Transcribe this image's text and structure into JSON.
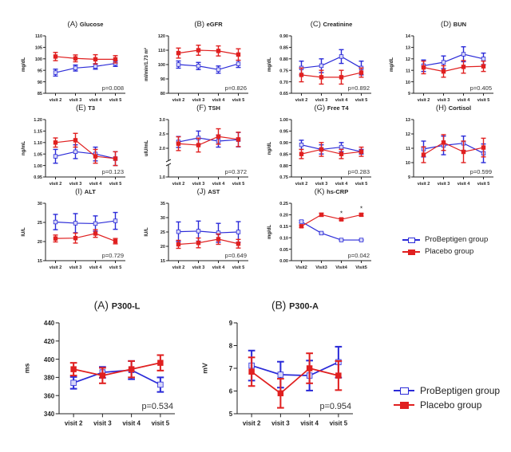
{
  "colors": {
    "probeptigen": "#2b2bd8",
    "placebo": "#e02020",
    "axis": "#222222"
  },
  "legend": {
    "probeptigen_label": "ProBeptigen group",
    "placebo_label": "Placebo group"
  },
  "chart_data": [
    {
      "type": "line",
      "panel": "(A)",
      "title": "Glucose",
      "ylabel": "mg/dL",
      "categories": [
        "visit 2",
        "visit 3",
        "visit 4",
        "visit 5"
      ],
      "ylim": [
        85,
        110
      ],
      "yticks": [
        85,
        90,
        95,
        100,
        105,
        110
      ],
      "tick_decimals": 0,
      "pvalue": "p=0.008",
      "series": [
        {
          "name": "ProBeptigen group",
          "values": [
            94,
            96,
            96.7,
            98
          ],
          "err": [
            1.5,
            1.3,
            1.2,
            1.3
          ]
        },
        {
          "name": "Placebo group",
          "values": [
            101,
            100.2,
            99.8,
            99.8
          ],
          "err": [
            1.8,
            1.5,
            2,
            1.6
          ]
        }
      ]
    },
    {
      "type": "line",
      "panel": "(B)",
      "title": "eGFR",
      "ylabel": "ml/min/1.73 m²",
      "categories": [
        "visit 2",
        "visit 3",
        "visit 4",
        "visit 5"
      ],
      "ylim": [
        80,
        120
      ],
      "yticks": [
        80,
        90,
        100,
        110,
        120
      ],
      "tick_decimals": 0,
      "pvalue": "p=0.826",
      "series": [
        {
          "name": "ProBeptigen group",
          "values": [
            100,
            99,
            96.5,
            100.5
          ],
          "err": [
            2.5,
            2.5,
            2.5,
            2.5
          ]
        },
        {
          "name": "Placebo group",
          "values": [
            108,
            110,
            109.5,
            107
          ],
          "err": [
            3.5,
            3.5,
            3.5,
            4
          ]
        }
      ]
    },
    {
      "type": "line",
      "panel": "(C)",
      "title": "Creatinine",
      "ylabel": "mg/dL",
      "categories": [
        "visit 2",
        "visit 3",
        "visit 4",
        "visit 5"
      ],
      "ylim": [
        0.65,
        0.9
      ],
      "yticks": [
        0.65,
        0.7,
        0.75,
        0.8,
        0.85,
        0.9
      ],
      "tick_decimals": 2,
      "pvalue": "p=0.892",
      "series": [
        {
          "name": "ProBeptigen group",
          "values": [
            0.76,
            0.77,
            0.81,
            0.76
          ],
          "err": [
            0.03,
            0.03,
            0.03,
            0.03
          ]
        },
        {
          "name": "Placebo group",
          "values": [
            0.73,
            0.72,
            0.72,
            0.74
          ],
          "err": [
            0.03,
            0.03,
            0.03,
            0.02
          ]
        }
      ]
    },
    {
      "type": "line",
      "panel": "(D)",
      "title": "BUN",
      "ylabel": "mg/dL",
      "categories": [
        "visit 2",
        "visit 3",
        "visit 4",
        "visit 5"
      ],
      "ylim": [
        9,
        14
      ],
      "yticks": [
        9,
        10,
        11,
        12,
        13,
        14
      ],
      "tick_decimals": 0,
      "pvalue": "p=0.405",
      "series": [
        {
          "name": "ProBeptigen group",
          "values": [
            11.4,
            11.7,
            12.4,
            12.0
          ],
          "err": [
            0.5,
            0.55,
            0.65,
            0.5
          ]
        },
        {
          "name": "Placebo group",
          "values": [
            11.25,
            10.9,
            11.3,
            11.35
          ],
          "err": [
            0.55,
            0.5,
            0.55,
            0.45
          ]
        }
      ]
    },
    {
      "type": "line",
      "panel": "(E)",
      "title": "T3",
      "ylabel": "ng/mL",
      "categories": [
        "visit 2",
        "visit 3",
        "visit 4",
        "visit 5"
      ],
      "ylim": [
        0.95,
        1.2
      ],
      "yticks": [
        0.95,
        1.0,
        1.05,
        1.1,
        1.15,
        1.2
      ],
      "tick_decimals": 2,
      "pvalue": "p=0.123",
      "series": [
        {
          "name": "ProBeptigen group",
          "values": [
            1.04,
            1.06,
            1.05,
            1.03
          ],
          "err": [
            0.03,
            0.03,
            0.03,
            0.03
          ]
        },
        {
          "name": "Placebo group",
          "values": [
            1.1,
            1.11,
            1.04,
            1.03
          ],
          "err": [
            0.02,
            0.03,
            0.03,
            0.03
          ]
        }
      ]
    },
    {
      "type": "line",
      "panel": "(F)",
      "title": "TSH",
      "ylabel": "uIU/mL",
      "categories": [
        "visit 2",
        "visit 3",
        "visit 4",
        "visit 5"
      ],
      "ylim": [
        1.0,
        3.0
      ],
      "yticks": [
        1.0,
        2.0,
        2.5,
        3.0
      ],
      "ytick_labels": [
        "1.0",
        "2.0",
        "2.5",
        "3.0"
      ],
      "axis_break": true,
      "tick_decimals": 1,
      "pvalue": "p=0.372",
      "series": [
        {
          "name": "ProBeptigen group",
          "values": [
            2.22,
            2.36,
            2.25,
            2.3
          ],
          "err": [
            0.19,
            0.24,
            0.21,
            0.25
          ]
        },
        {
          "name": "Placebo group",
          "values": [
            2.16,
            2.11,
            2.41,
            2.31
          ],
          "err": [
            0.24,
            0.24,
            0.27,
            0.25
          ]
        }
      ]
    },
    {
      "type": "line",
      "panel": "(G)",
      "title": "Free T4",
      "ylabel": "ng/dL",
      "categories": [
        "visit 2",
        "visit 3",
        "visit 4",
        "visit 5"
      ],
      "ylim": [
        0.75,
        1.0
      ],
      "yticks": [
        0.75,
        0.8,
        0.85,
        0.9,
        0.95,
        1.0
      ],
      "tick_decimals": 2,
      "pvalue": "p=0.283",
      "series": [
        {
          "name": "ProBeptigen group",
          "values": [
            0.89,
            0.87,
            0.88,
            0.86
          ],
          "err": [
            0.02,
            0.02,
            0.02,
            0.01
          ]
        },
        {
          "name": "Placebo group",
          "values": [
            0.85,
            0.87,
            0.85,
            0.86
          ],
          "err": [
            0.02,
            0.03,
            0.02,
            0.02
          ]
        }
      ]
    },
    {
      "type": "line",
      "panel": "(H)",
      "title": "Cortisol",
      "ylabel": "",
      "categories": [
        "visit 2",
        "visit 3",
        "visit 4",
        "visit 5"
      ],
      "ylim": [
        9,
        13
      ],
      "yticks": [
        9,
        10,
        11,
        12,
        13
      ],
      "tick_decimals": 0,
      "pvalue": "p=0.599",
      "series": [
        {
          "name": "ProBeptigen group",
          "values": [
            10.95,
            11.2,
            11.35,
            10.65
          ],
          "err": [
            0.55,
            0.65,
            0.5,
            0.65
          ]
        },
        {
          "name": "Placebo group",
          "values": [
            10.55,
            11.4,
            10.75,
            11.05
          ],
          "err": [
            0.55,
            0.55,
            0.75,
            0.65
          ]
        }
      ]
    },
    {
      "type": "line",
      "panel": "(I)",
      "title": "ALT",
      "ylabel": "IU/L",
      "categories": [
        "visit 2",
        "visit 3",
        "visit 4",
        "visit 5"
      ],
      "ylim": [
        15,
        30
      ],
      "yticks": [
        15,
        20,
        25,
        30
      ],
      "tick_decimals": 0,
      "pvalue": "p=0.729",
      "series": [
        {
          "name": "ProBeptigen group",
          "values": [
            25.1,
            24.8,
            24.7,
            25.4
          ],
          "err": [
            2,
            2.5,
            2,
            2.2
          ]
        },
        {
          "name": "Placebo group",
          "values": [
            20.8,
            20.9,
            22.1,
            20.1
          ],
          "err": [
            0.9,
            1.3,
            1,
            0.7
          ]
        }
      ]
    },
    {
      "type": "line",
      "panel": "(J)",
      "title": "AST",
      "ylabel": "IU/L",
      "categories": [
        "visit 2",
        "visit 3",
        "visit 4",
        "visit 5"
      ],
      "ylim": [
        15,
        35
      ],
      "yticks": [
        15,
        20,
        25,
        30,
        35
      ],
      "tick_decimals": 0,
      "pvalue": "p=0.649",
      "series": [
        {
          "name": "ProBeptigen group",
          "values": [
            25.1,
            25.3,
            24.7,
            25.0
          ],
          "err": [
            3.4,
            3.5,
            3.3,
            3.6
          ]
        },
        {
          "name": "Placebo group",
          "values": [
            20.7,
            21.2,
            22.5,
            20.9
          ],
          "err": [
            1.4,
            1.7,
            1.8,
            1.5
          ]
        }
      ]
    },
    {
      "type": "line",
      "panel": "(K)",
      "title": "hs-CRP",
      "ylabel": "mg/dL",
      "categories": [
        "Visit2",
        "Visit3",
        "Visit4",
        "Visit5"
      ],
      "ylim": [
        0.0,
        0.25
      ],
      "yticks": [
        0.0,
        0.05,
        0.1,
        0.15,
        0.2,
        0.25
      ],
      "tick_decimals": 2,
      "pvalue": "p=0.042",
      "significance_markers": [
        "",
        "",
        "*",
        "*"
      ],
      "series": [
        {
          "name": "ProBeptigen group",
          "values": [
            0.17,
            0.12,
            0.09,
            0.09
          ],
          "err": [
            0.005,
            0.003,
            0.002,
            0.002
          ]
        },
        {
          "name": "Placebo group",
          "values": [
            0.15,
            0.2,
            0.18,
            0.2
          ],
          "err": [
            0.005,
            0.007,
            0.005,
            0.006
          ]
        }
      ]
    },
    {
      "type": "line",
      "panel": "(A)",
      "title": "P300-L",
      "ylabel": "ms",
      "categories": [
        "visit 2",
        "visit 3",
        "visit 4",
        "visit 5"
      ],
      "ylim": [
        340,
        440
      ],
      "yticks": [
        340,
        360,
        380,
        400,
        420,
        440
      ],
      "tick_decimals": 0,
      "pvalue": "p=0.534",
      "series": [
        {
          "name": "ProBeptigen group",
          "values": [
            374,
            385.5,
            388,
            372
          ],
          "err": [
            6.5,
            6,
            10,
            8
          ]
        },
        {
          "name": "Placebo group",
          "values": [
            389,
            382,
            389,
            396
          ],
          "err": [
            7,
            8.5,
            9,
            8.5
          ]
        }
      ]
    },
    {
      "type": "line",
      "panel": "(B)",
      "title": "P300-A",
      "ylabel": "mV",
      "categories": [
        "visit 2",
        "visit 3",
        "visit 4",
        "visit 5"
      ],
      "ylim": [
        5,
        9
      ],
      "yticks": [
        5,
        6,
        7,
        8,
        9
      ],
      "tick_decimals": 0,
      "pvalue": "p=0.954",
      "series": [
        {
          "name": "ProBeptigen group",
          "values": [
            7.12,
            6.72,
            6.68,
            7.27
          ],
          "err": [
            0.66,
            0.57,
            0.66,
            0.68
          ]
        },
        {
          "name": "Placebo group",
          "values": [
            6.85,
            5.9,
            7.0,
            6.68
          ],
          "err": [
            0.63,
            0.64,
            0.66,
            0.64
          ]
        }
      ]
    }
  ]
}
